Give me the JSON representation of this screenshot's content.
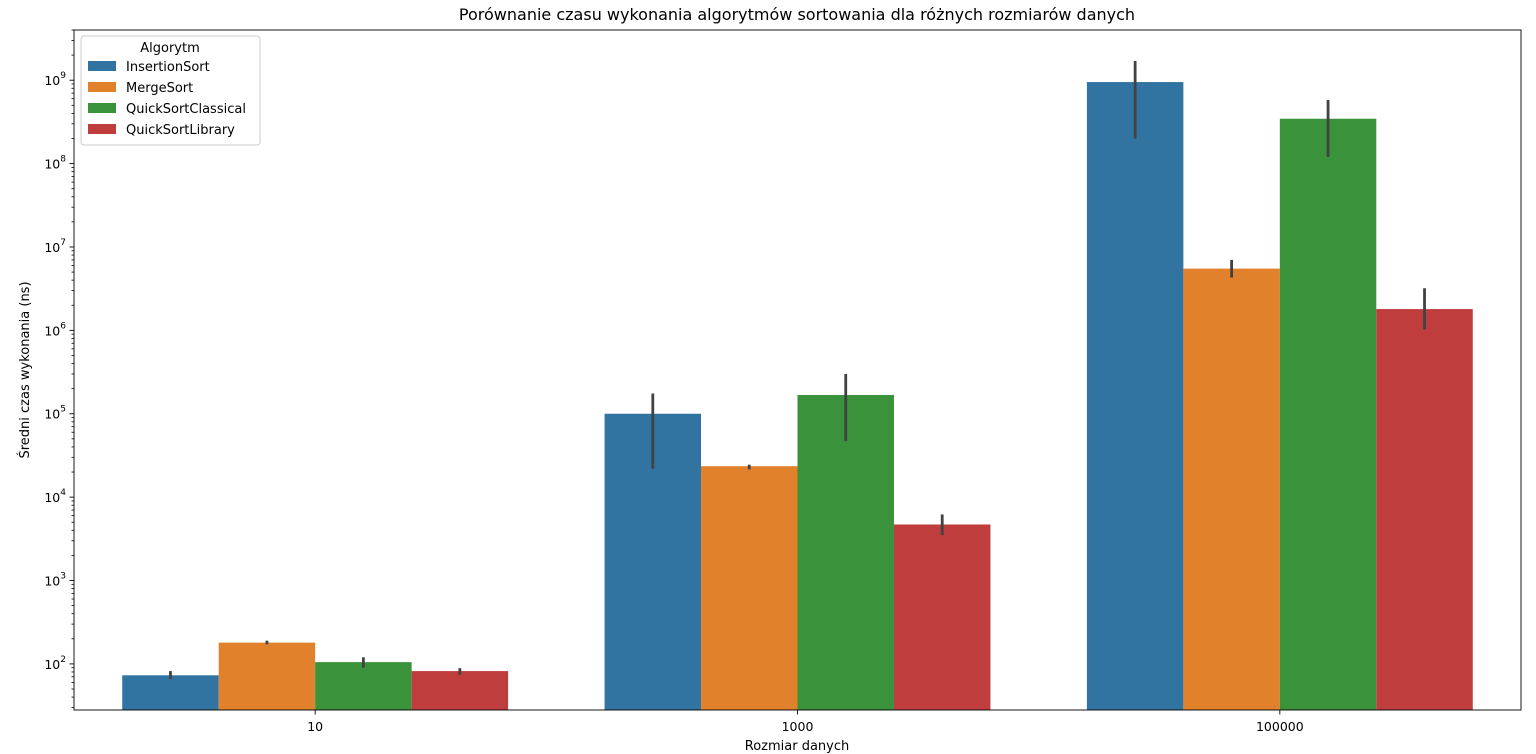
{
  "chart_data": {
    "type": "bar",
    "title": "Porównanie czasu wykonania algorytmów sortowania dla różnych rozmiarów danych",
    "xlabel": "Rozmiar danych",
    "ylabel": "Średni czas wykonania (ns)",
    "yscale": "log",
    "ylim": [
      28,
      4000000000
    ],
    "y_ticks": [
      {
        "base": "10",
        "exp": "2",
        "value": 100
      },
      {
        "base": "10",
        "exp": "3",
        "value": 1000
      },
      {
        "base": "10",
        "exp": "4",
        "value": 10000
      },
      {
        "base": "10",
        "exp": "5",
        "value": 100000
      },
      {
        "base": "10",
        "exp": "6",
        "value": 1000000
      },
      {
        "base": "10",
        "exp": "7",
        "value": 10000000
      },
      {
        "base": "10",
        "exp": "8",
        "value": 100000000
      },
      {
        "base": "10",
        "exp": "9",
        "value": 1000000000
      }
    ],
    "categories": [
      "10",
      "1000",
      "100000"
    ],
    "grid": false,
    "legend": {
      "title": "Algorytm",
      "placement": "top-left"
    },
    "series": [
      {
        "name": "InsertionSort",
        "color": "#3274a1",
        "values": [
          73,
          100000,
          950000000
        ],
        "err_low": [
          66,
          22000,
          200000000
        ],
        "err_high": [
          82,
          175000,
          1700000000
        ]
      },
      {
        "name": "MergeSort",
        "color": "#e1812c",
        "values": [
          180,
          23500,
          5500000
        ],
        "err_low": [
          172,
          21500,
          4300000
        ],
        "err_high": [
          190,
          24500,
          7000000
        ]
      },
      {
        "name": "QuickSortClassical",
        "color": "#3a923a",
        "values": [
          105,
          168000,
          345000000
        ],
        "err_low": [
          90,
          47000,
          120000000
        ],
        "err_high": [
          120,
          300000,
          580000000
        ]
      },
      {
        "name": "QuickSortLibrary",
        "color": "#c03d3e",
        "values": [
          82,
          4700,
          1800000
        ],
        "err_low": [
          74,
          3500,
          1030000
        ],
        "err_high": [
          89,
          6200,
          3200000
        ]
      }
    ]
  }
}
